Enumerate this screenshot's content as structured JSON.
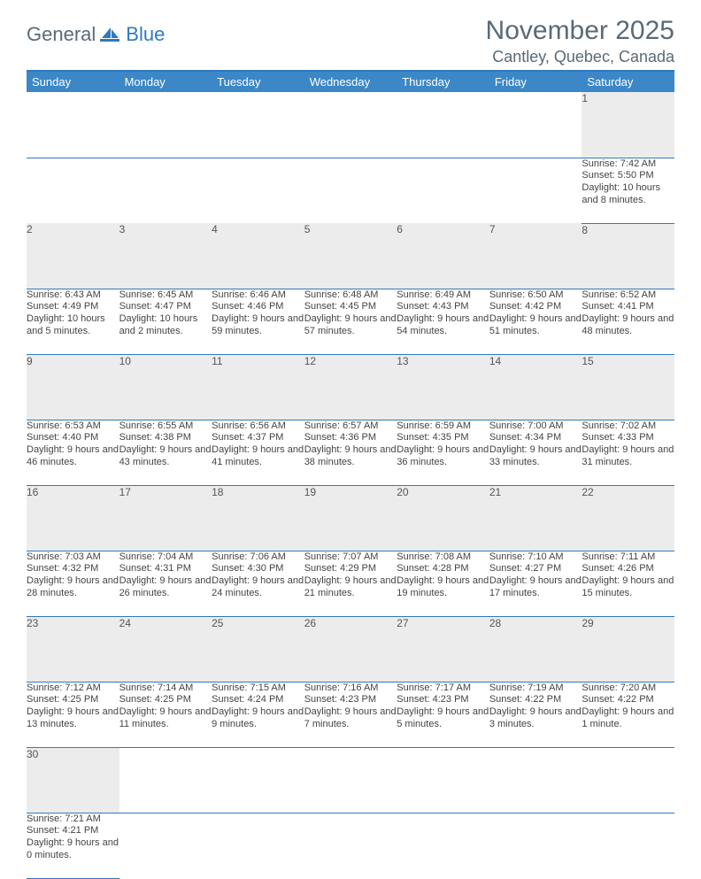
{
  "brand": {
    "part1": "General",
    "part2": "Blue"
  },
  "title": "November 2025",
  "location": "Cantley, Quebec, Canada",
  "colors": {
    "header_bg": "#3c87c7",
    "rule": "#2f7ac0",
    "daynum_bg": "#ececec",
    "text": "#333333",
    "muted": "#5a6a77"
  },
  "weekdays": [
    "Sunday",
    "Monday",
    "Tuesday",
    "Wednesday",
    "Thursday",
    "Friday",
    "Saturday"
  ],
  "weeks": [
    [
      null,
      null,
      null,
      null,
      null,
      null,
      {
        "n": "1",
        "sunrise": "Sunrise: 7:42 AM",
        "sunset": "Sunset: 5:50 PM",
        "day": "Daylight: 10 hours and 8 minutes."
      }
    ],
    [
      {
        "n": "2",
        "sunrise": "Sunrise: 6:43 AM",
        "sunset": "Sunset: 4:49 PM",
        "day": "Daylight: 10 hours and 5 minutes."
      },
      {
        "n": "3",
        "sunrise": "Sunrise: 6:45 AM",
        "sunset": "Sunset: 4:47 PM",
        "day": "Daylight: 10 hours and 2 minutes."
      },
      {
        "n": "4",
        "sunrise": "Sunrise: 6:46 AM",
        "sunset": "Sunset: 4:46 PM",
        "day": "Daylight: 9 hours and 59 minutes."
      },
      {
        "n": "5",
        "sunrise": "Sunrise: 6:48 AM",
        "sunset": "Sunset: 4:45 PM",
        "day": "Daylight: 9 hours and 57 minutes."
      },
      {
        "n": "6",
        "sunrise": "Sunrise: 6:49 AM",
        "sunset": "Sunset: 4:43 PM",
        "day": "Daylight: 9 hours and 54 minutes."
      },
      {
        "n": "7",
        "sunrise": "Sunrise: 6:50 AM",
        "sunset": "Sunset: 4:42 PM",
        "day": "Daylight: 9 hours and 51 minutes."
      },
      {
        "n": "8",
        "sunrise": "Sunrise: 6:52 AM",
        "sunset": "Sunset: 4:41 PM",
        "day": "Daylight: 9 hours and 48 minutes."
      }
    ],
    [
      {
        "n": "9",
        "sunrise": "Sunrise: 6:53 AM",
        "sunset": "Sunset: 4:40 PM",
        "day": "Daylight: 9 hours and 46 minutes."
      },
      {
        "n": "10",
        "sunrise": "Sunrise: 6:55 AM",
        "sunset": "Sunset: 4:38 PM",
        "day": "Daylight: 9 hours and 43 minutes."
      },
      {
        "n": "11",
        "sunrise": "Sunrise: 6:56 AM",
        "sunset": "Sunset: 4:37 PM",
        "day": "Daylight: 9 hours and 41 minutes."
      },
      {
        "n": "12",
        "sunrise": "Sunrise: 6:57 AM",
        "sunset": "Sunset: 4:36 PM",
        "day": "Daylight: 9 hours and 38 minutes."
      },
      {
        "n": "13",
        "sunrise": "Sunrise: 6:59 AM",
        "sunset": "Sunset: 4:35 PM",
        "day": "Daylight: 9 hours and 36 minutes."
      },
      {
        "n": "14",
        "sunrise": "Sunrise: 7:00 AM",
        "sunset": "Sunset: 4:34 PM",
        "day": "Daylight: 9 hours and 33 minutes."
      },
      {
        "n": "15",
        "sunrise": "Sunrise: 7:02 AM",
        "sunset": "Sunset: 4:33 PM",
        "day": "Daylight: 9 hours and 31 minutes."
      }
    ],
    [
      {
        "n": "16",
        "sunrise": "Sunrise: 7:03 AM",
        "sunset": "Sunset: 4:32 PM",
        "day": "Daylight: 9 hours and 28 minutes."
      },
      {
        "n": "17",
        "sunrise": "Sunrise: 7:04 AM",
        "sunset": "Sunset: 4:31 PM",
        "day": "Daylight: 9 hours and 26 minutes."
      },
      {
        "n": "18",
        "sunrise": "Sunrise: 7:06 AM",
        "sunset": "Sunset: 4:30 PM",
        "day": "Daylight: 9 hours and 24 minutes."
      },
      {
        "n": "19",
        "sunrise": "Sunrise: 7:07 AM",
        "sunset": "Sunset: 4:29 PM",
        "day": "Daylight: 9 hours and 21 minutes."
      },
      {
        "n": "20",
        "sunrise": "Sunrise: 7:08 AM",
        "sunset": "Sunset: 4:28 PM",
        "day": "Daylight: 9 hours and 19 minutes."
      },
      {
        "n": "21",
        "sunrise": "Sunrise: 7:10 AM",
        "sunset": "Sunset: 4:27 PM",
        "day": "Daylight: 9 hours and 17 minutes."
      },
      {
        "n": "22",
        "sunrise": "Sunrise: 7:11 AM",
        "sunset": "Sunset: 4:26 PM",
        "day": "Daylight: 9 hours and 15 minutes."
      }
    ],
    [
      {
        "n": "23",
        "sunrise": "Sunrise: 7:12 AM",
        "sunset": "Sunset: 4:25 PM",
        "day": "Daylight: 9 hours and 13 minutes."
      },
      {
        "n": "24",
        "sunrise": "Sunrise: 7:14 AM",
        "sunset": "Sunset: 4:25 PM",
        "day": "Daylight: 9 hours and 11 minutes."
      },
      {
        "n": "25",
        "sunrise": "Sunrise: 7:15 AM",
        "sunset": "Sunset: 4:24 PM",
        "day": "Daylight: 9 hours and 9 minutes."
      },
      {
        "n": "26",
        "sunrise": "Sunrise: 7:16 AM",
        "sunset": "Sunset: 4:23 PM",
        "day": "Daylight: 9 hours and 7 minutes."
      },
      {
        "n": "27",
        "sunrise": "Sunrise: 7:17 AM",
        "sunset": "Sunset: 4:23 PM",
        "day": "Daylight: 9 hours and 5 minutes."
      },
      {
        "n": "28",
        "sunrise": "Sunrise: 7:19 AM",
        "sunset": "Sunset: 4:22 PM",
        "day": "Daylight: 9 hours and 3 minutes."
      },
      {
        "n": "29",
        "sunrise": "Sunrise: 7:20 AM",
        "sunset": "Sunset: 4:22 PM",
        "day": "Daylight: 9 hours and 1 minute."
      }
    ],
    [
      {
        "n": "30",
        "sunrise": "Sunrise: 7:21 AM",
        "sunset": "Sunset: 4:21 PM",
        "day": "Daylight: 9 hours and 0 minutes."
      },
      null,
      null,
      null,
      null,
      null,
      null
    ]
  ]
}
